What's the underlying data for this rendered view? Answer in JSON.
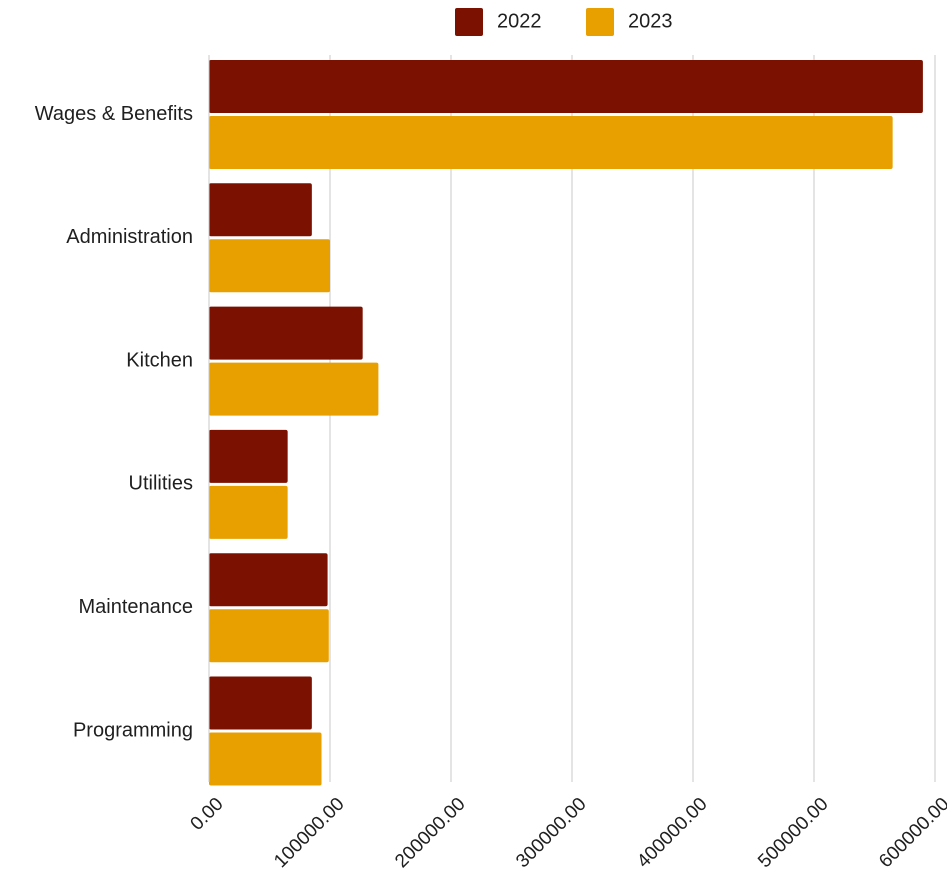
{
  "chart_data": {
    "type": "bar",
    "orientation": "horizontal",
    "title": "",
    "xlabel": "",
    "ylabel": "",
    "categories": [
      "Wages & Benefits",
      "Administration",
      "Kitchen",
      "Utilities",
      "Maintenance",
      "Programming"
    ],
    "series": [
      {
        "name": "2022",
        "color": "#7B1100",
        "values": [
          590000,
          85000,
          127000,
          65000,
          98000,
          85000
        ]
      },
      {
        "name": "2023",
        "color": "#E8A000",
        "values": [
          565000,
          100000,
          140000,
          65000,
          99000,
          93000
        ]
      }
    ],
    "xlim": [
      0,
      600000
    ],
    "x_ticks": [
      0,
      100000,
      200000,
      300000,
      400000,
      500000,
      600000
    ],
    "x_tick_labels": [
      "0.00",
      "100000.00",
      "200000.00",
      "300000.00",
      "400000.00",
      "500000.00",
      "600000.00"
    ],
    "grid": "vertical",
    "legend_position": "top"
  }
}
